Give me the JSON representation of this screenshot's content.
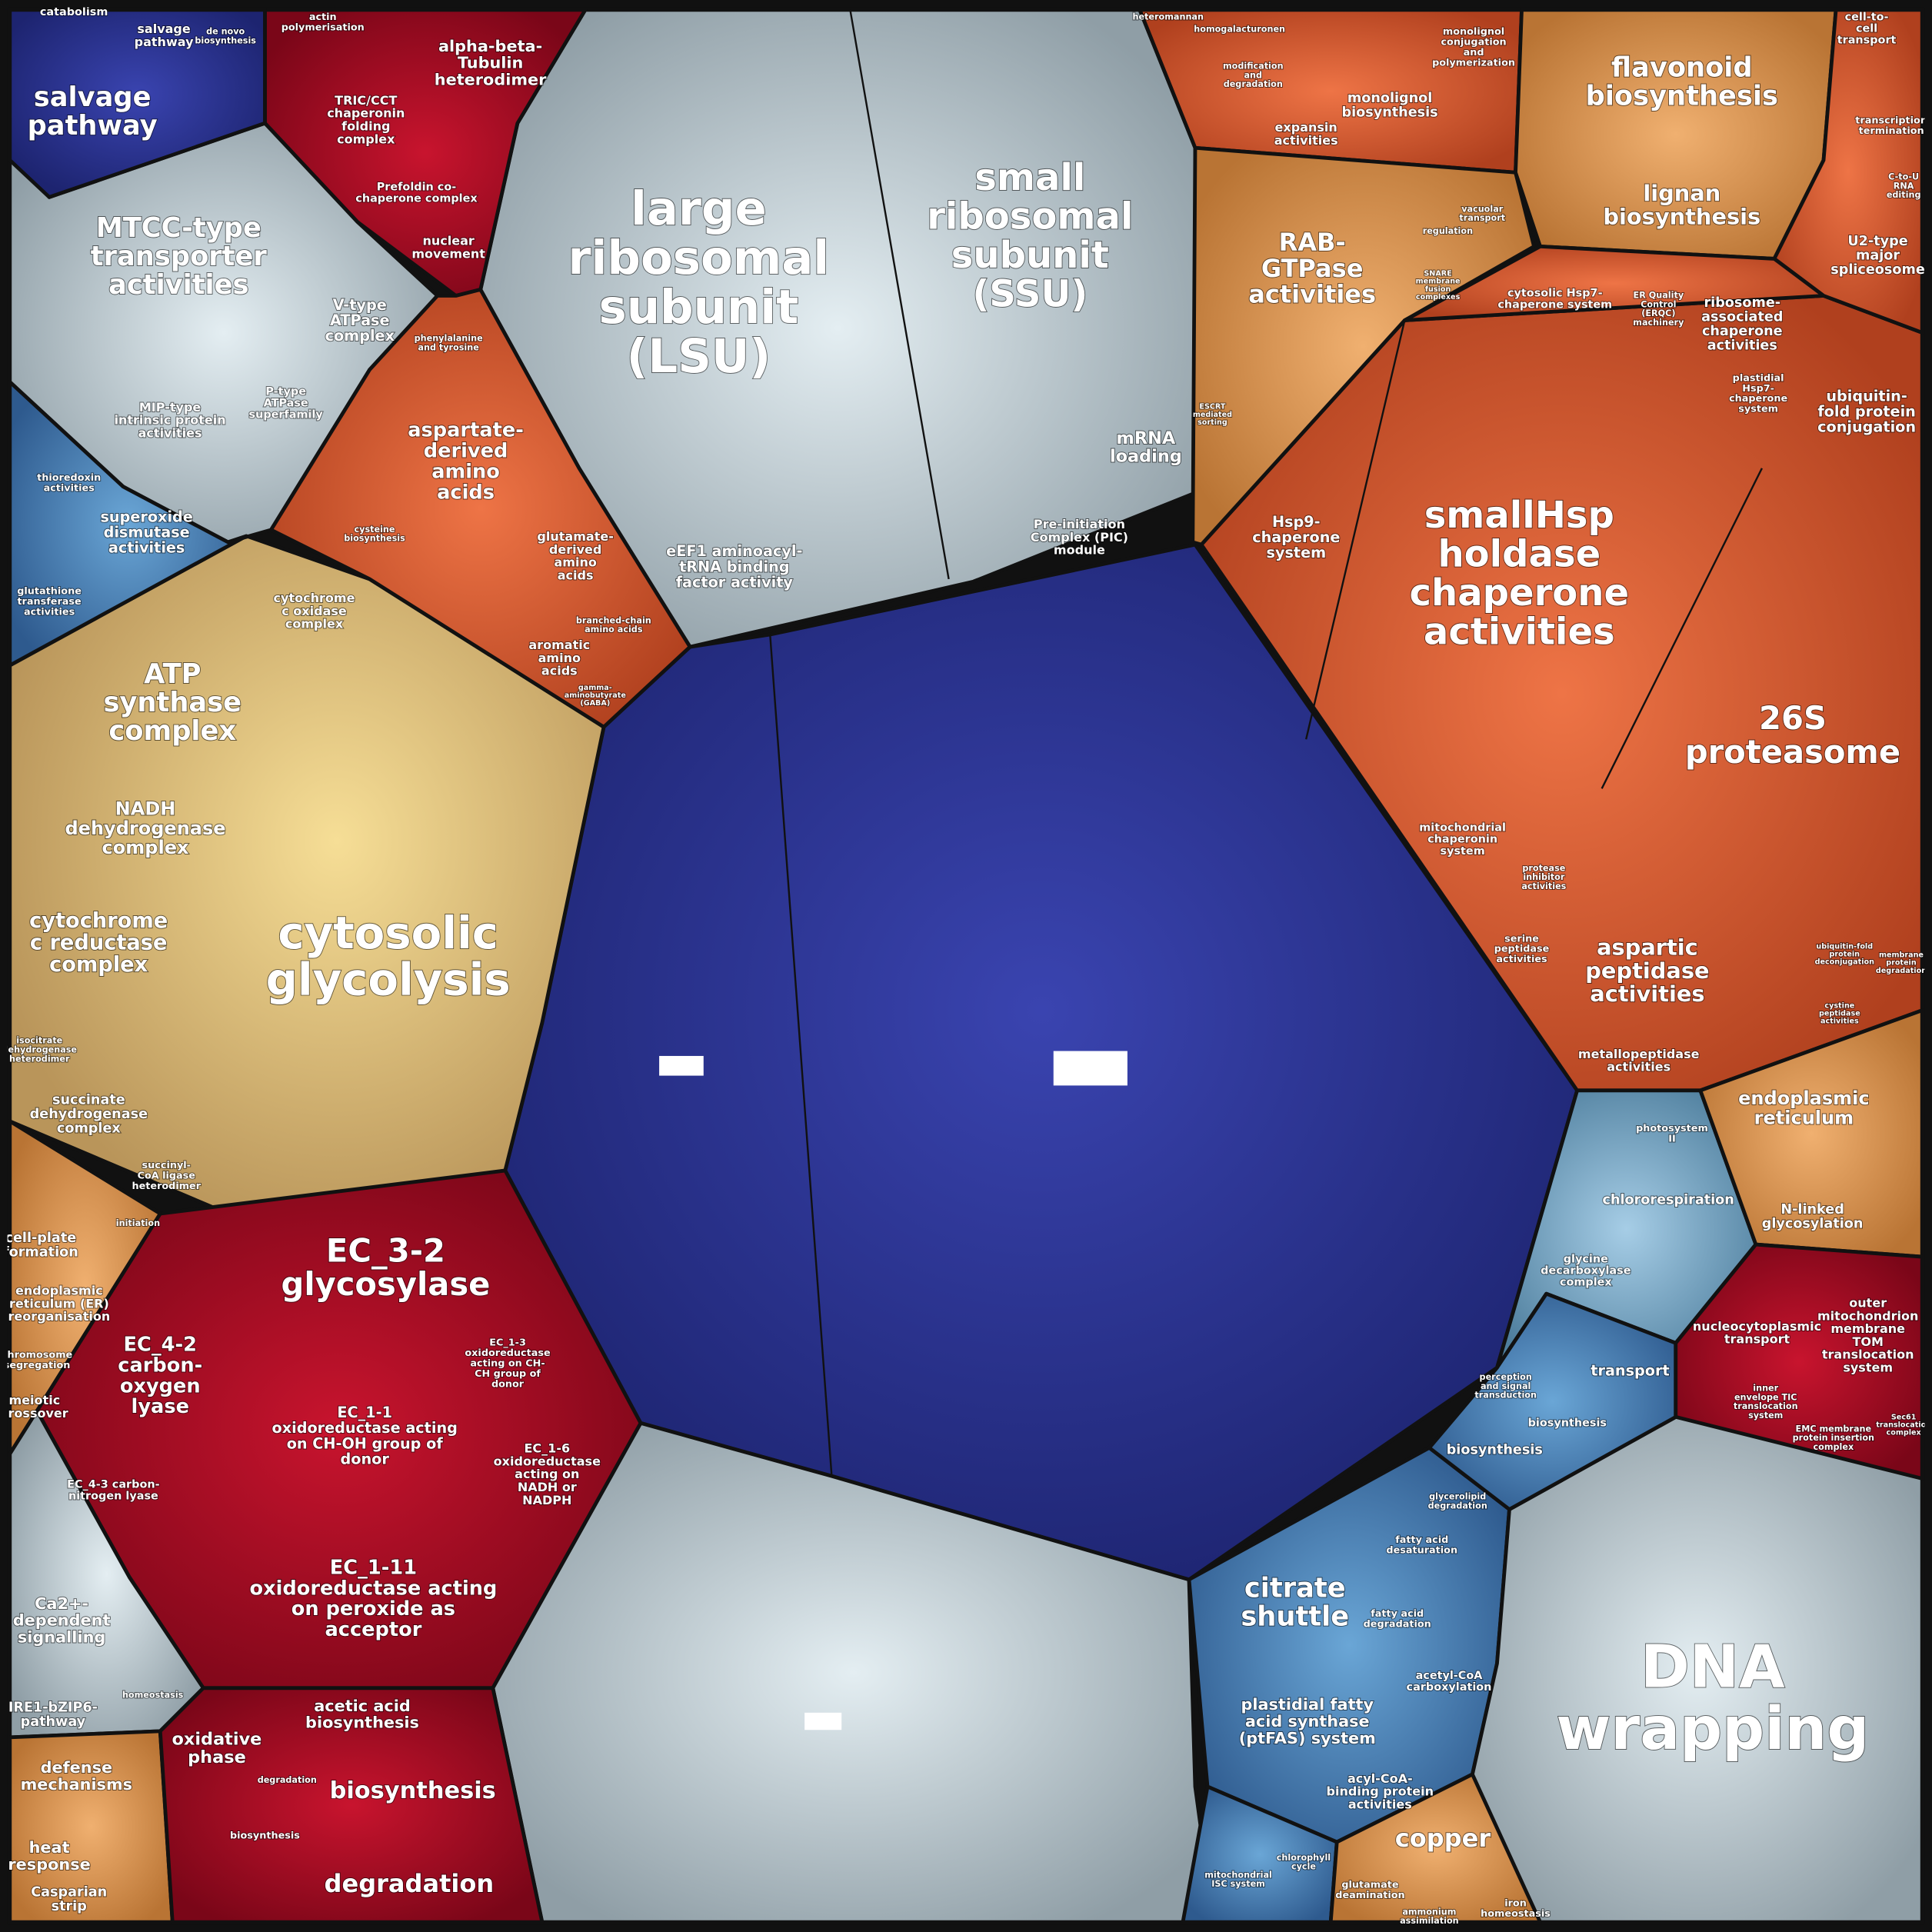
{
  "nodes": [
    {
      "lines": [
        "salvage",
        "pathway"
      ]
    },
    {
      "lines": [
        "catabolism"
      ]
    },
    {
      "lines": [
        "salvage",
        "pathway"
      ]
    },
    {
      "lines": [
        "actin",
        "polymerisation"
      ]
    },
    {
      "lines": [
        "alpha-beta-",
        "Tubulin",
        "heterodimer"
      ]
    },
    {
      "lines": [
        "TRIC/CCT",
        "chaperonin",
        "folding",
        "complex"
      ]
    },
    {
      "lines": [
        "Prefoldin co-",
        "chaperone complex"
      ]
    },
    {
      "lines": [
        "nuclear",
        "movement"
      ]
    },
    {
      "lines": [
        "MTCC-type",
        "transporter",
        "activities"
      ]
    },
    {
      "lines": [
        "V-type",
        "ATPase",
        "complex"
      ]
    },
    {
      "lines": [
        "MIP-type",
        "intrinsic protein",
        "activities"
      ]
    },
    {
      "lines": [
        "P-type",
        "ATPase",
        "superfamily"
      ]
    },
    {
      "lines": [
        "thioredoxin",
        "activities"
      ]
    },
    {
      "lines": [
        "superoxide",
        "dismutase",
        "activities"
      ]
    },
    {
      "lines": [
        "glutathione",
        "transferase",
        "activities"
      ]
    },
    {
      "lines": [
        "aspartate-",
        "derived",
        "amino",
        "acids"
      ]
    },
    {
      "lines": [
        "glutamate-",
        "derived",
        "amino",
        "acids"
      ]
    },
    {
      "lines": [
        "aromatic",
        "amino",
        "acids"
      ]
    },
    {
      "lines": [
        "large",
        "ribosomal",
        "subunit",
        "(LSU)"
      ]
    },
    {
      "lines": [
        "small",
        "ribosomal",
        "subunit",
        "(SSU)"
      ]
    },
    {
      "lines": [
        "mRNA",
        "loading"
      ]
    },
    {
      "lines": [
        "eEF1 aminoacyl-",
        "tRNA binding",
        "factor activity"
      ]
    },
    {
      "lines": [
        "Pre-initiation",
        "Complex (PIC)",
        "module"
      ]
    },
    {
      "lines": [
        "ATP",
        "synthase",
        "complex"
      ]
    },
    {
      "lines": [
        "cytochrome",
        "c oxidase",
        "complex"
      ]
    },
    {
      "lines": [
        "NADH",
        "dehydrogenase",
        "complex"
      ]
    },
    {
      "lines": [
        "cytochrome",
        "c reductase",
        "complex"
      ]
    },
    {
      "lines": [
        "cytosolic",
        "glycolysis"
      ]
    },
    {
      "lines": [
        "succinate",
        "dehydrogenase",
        "complex"
      ]
    },
    {
      "lines": [
        "succinyl-",
        "CoA ligase",
        "heterodimer"
      ]
    },
    {
      "lines": [
        "cell-plate",
        "formation"
      ]
    },
    {
      "lines": [
        "endoplasmic",
        "reticulum (ER)",
        "reorganisation"
      ]
    },
    {
      "lines": [
        "chromosome",
        "segregation"
      ]
    },
    {
      "lines": [
        "meiotic",
        "crossover"
      ]
    },
    {
      "lines": [
        "EC_3-2",
        "glycosylase"
      ]
    },
    {
      "lines": [
        "EC_4-2",
        "carbon-",
        "oxygen",
        "lyase"
      ]
    },
    {
      "lines": [
        "EC_4-3 carbon-",
        "nitrogen lyase"
      ]
    },
    {
      "lines": [
        "EC_1-1",
        "oxidoreductase acting",
        "on CH-OH group of",
        "donor"
      ]
    },
    {
      "lines": [
        "EC_1-6",
        "oxidoreductase",
        "acting on",
        "NADH or",
        "NADPH"
      ]
    },
    {
      "lines": [
        "EC_1-3",
        "oxidoreductase",
        "acting on CH-",
        "CH group of",
        "donor"
      ]
    },
    {
      "lines": [
        "EC_1-11",
        "oxidoreductase acting",
        "on peroxide as",
        "acceptor"
      ]
    },
    {
      "lines": [
        "Ca2+-",
        "dependent",
        "signalling"
      ]
    },
    {
      "lines": [
        "IRE1-bZIP6-",
        "pathway"
      ]
    },
    {
      "lines": [
        "homeostasis"
      ]
    },
    {
      "lines": [
        "defense",
        "mechanisms"
      ]
    },
    {
      "lines": [
        "heat",
        "response"
      ]
    },
    {
      "lines": [
        "Casparian",
        "strip"
      ]
    },
    {
      "lines": [
        "oxidative",
        "phase"
      ]
    },
    {
      "lines": [
        "acetic acid",
        "biosynthesis"
      ]
    },
    {
      "lines": [
        "degradation"
      ]
    },
    {
      "lines": [
        "biosynthesis"
      ]
    },
    {
      "lines": [
        "biosynthesis"
      ]
    },
    {
      "lines": [
        "degradation"
      ]
    },
    {
      "lines": [
        "DNA",
        "wrapping"
      ]
    },
    {
      "lines": [
        "citrate",
        "shuttle"
      ]
    },
    {
      "lines": [
        "plastidial fatty",
        "acid synthase",
        "(ptFAS) system"
      ]
    },
    {
      "lines": [
        "acyl-CoA-",
        "binding protein",
        "activities"
      ]
    },
    {
      "lines": [
        "acetyl-CoA",
        "carboxylation"
      ]
    },
    {
      "lines": [
        "fatty acid",
        "desaturation"
      ]
    },
    {
      "lines": [
        "fatty acid",
        "degradation"
      ]
    },
    {
      "lines": [
        "glycerolipid",
        "degradation"
      ]
    },
    {
      "lines": [
        "mitochondrial",
        "ISC system"
      ]
    },
    {
      "lines": [
        "chlorophyll",
        "cycle"
      ]
    },
    {
      "lines": [
        "copper"
      ]
    },
    {
      "lines": [
        "glutamate",
        "deamination"
      ]
    },
    {
      "lines": [
        "iron",
        "homeostasis"
      ]
    },
    {
      "lines": [
        "ammonium",
        "assimilation"
      ]
    },
    {
      "lines": [
        "transport"
      ]
    },
    {
      "lines": [
        "biosynthesis"
      ]
    },
    {
      "lines": [
        "biosynthesis"
      ]
    },
    {
      "lines": [
        "perception",
        "and signal",
        "transduction"
      ]
    },
    {
      "lines": [
        "glycine",
        "decarboxylase",
        "complex"
      ]
    },
    {
      "lines": [
        "chlororespiration"
      ]
    },
    {
      "lines": [
        "photosystem",
        "II"
      ]
    },
    {
      "lines": [
        "endoplasmic",
        "reticulum"
      ]
    },
    {
      "lines": [
        "N-linked",
        "glycosylation"
      ]
    },
    {
      "lines": [
        "nucleocytoplasmic",
        "transport"
      ]
    },
    {
      "lines": [
        "outer",
        "mitochondrion",
        "membrane",
        "TOM",
        "translocation",
        "system"
      ]
    },
    {
      "lines": [
        "inner",
        "envelope TIC",
        "translocation",
        "system"
      ]
    },
    {
      "lines": [
        "EMC membrane",
        "protein insertion",
        "complex"
      ]
    },
    {
      "lines": [
        "smallHsp",
        "holdase",
        "chaperone",
        "activities"
      ]
    },
    {
      "lines": [
        "26S",
        "proteasome"
      ]
    },
    {
      "lines": [
        "aspartic",
        "peptidase",
        "activities"
      ]
    },
    {
      "lines": [
        "metallopeptidase",
        "activities"
      ]
    },
    {
      "lines": [
        "mitochondrial",
        "chaperonin",
        "system"
      ]
    },
    {
      "lines": [
        "protease",
        "inhibitor",
        "activities"
      ]
    },
    {
      "lines": [
        "serine",
        "peptidase",
        "activities"
      ]
    },
    {
      "lines": [
        "Hsp9-",
        "chaperone",
        "system"
      ]
    },
    {
      "lines": [
        "RAB-",
        "GTPase",
        "activities"
      ]
    },
    {
      "lines": [
        "flavonoid",
        "biosynthesis"
      ]
    },
    {
      "lines": [
        "lignan",
        "biosynthesis"
      ]
    },
    {
      "lines": [
        "monolignol",
        "biosynthesis"
      ]
    },
    {
      "lines": [
        "monolignol",
        "conjugation",
        "and",
        "polymerization"
      ]
    },
    {
      "lines": [
        "expansin",
        "activities"
      ]
    },
    {
      "lines": [
        "homogalacturonen"
      ]
    },
    {
      "lines": [
        "modification",
        "and",
        "degradation"
      ]
    },
    {
      "lines": [
        "cell-to-",
        "cell",
        "transport"
      ]
    },
    {
      "lines": [
        "transcription",
        "termination"
      ]
    },
    {
      "lines": [
        "C-to-U",
        "RNA",
        "editing"
      ]
    },
    {
      "lines": [
        "U2-type",
        "major",
        "spliceosome"
      ]
    },
    {
      "lines": [
        "ubiquitin-",
        "fold protein",
        "conjugation"
      ]
    },
    {
      "lines": [
        "cytosolic Hsp7-",
        "chaperone system"
      ]
    },
    {
      "lines": [
        "ER Quality",
        "Control",
        "(ERQC)",
        "machinery"
      ]
    },
    {
      "lines": [
        "ribosome-",
        "associated",
        "chaperone",
        "activities"
      ]
    },
    {
      "lines": [
        "plastidial",
        "Hsp7-",
        "chaperone",
        "system"
      ]
    },
    {
      "lines": [
        "heteromannan"
      ]
    },
    {
      "lines": [
        "SNARE",
        "membrane",
        "fusion",
        "complexes"
      ]
    },
    {
      "lines": [
        "regulation"
      ]
    },
    {
      "lines": [
        "vacuolar",
        "transport"
      ]
    },
    {
      "lines": [
        "ESCRT",
        "mediated",
        "sorting"
      ]
    },
    {
      "lines": [
        "phenylalanine",
        "and tyrosine"
      ]
    },
    {
      "lines": [
        "cysteine",
        "biosynthesis"
      ]
    },
    {
      "lines": [
        "branched-chain",
        "amino acids"
      ]
    },
    {
      "lines": [
        "gamma-",
        "aminobutyrate",
        "(GABA)"
      ]
    },
    {
      "lines": [
        "isocitrate",
        "dehydrogenase",
        "heterodimer"
      ]
    },
    {
      "lines": [
        "initiation"
      ]
    },
    {
      "lines": [
        "de novo",
        "biosynthesis"
      ]
    },
    {
      "lines": [
        "ubiquitin-fold",
        "protein",
        "deconjugation"
      ]
    },
    {
      "lines": [
        "cystine",
        "peptidase",
        "activities"
      ]
    },
    {
      "lines": [
        "membrane",
        "protein",
        "degradation"
      ]
    },
    {
      "lines": [
        "Sec61",
        "translocation",
        "complex"
      ]
    }
  ]
}
